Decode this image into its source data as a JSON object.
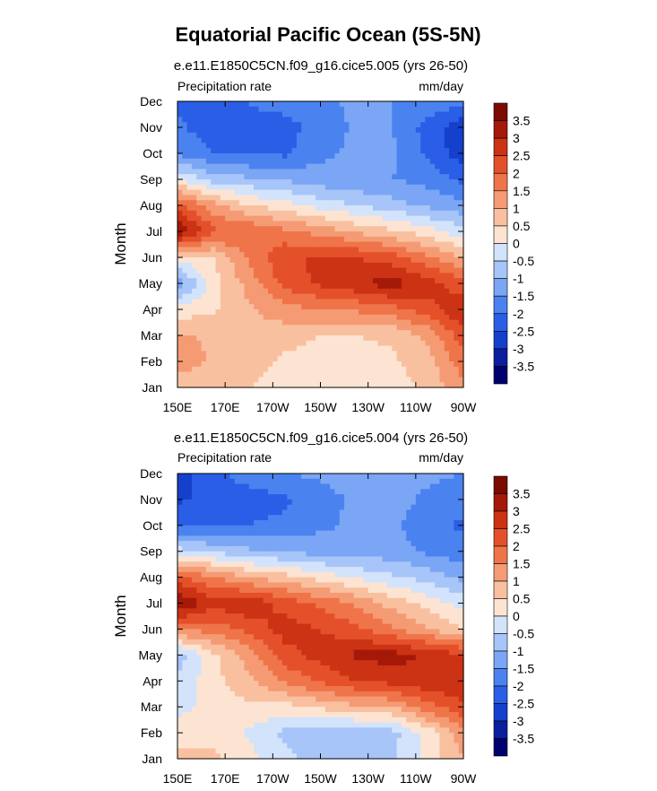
{
  "figure": {
    "title": "Equatorial Pacific Ocean (5S-5N)"
  },
  "colors": {
    "scale": [
      "#00006e",
      "#0a1e9e",
      "#1540cc",
      "#2a5ee6",
      "#4a82f0",
      "#7aa6f5",
      "#a7c5f8",
      "#d3e3fb",
      "#fde4d2",
      "#f9c0a0",
      "#f59b74",
      "#ef7449",
      "#e4502a",
      "#cc3214",
      "#a51908",
      "#7a0a02"
    ]
  },
  "chart_data": [
    {
      "type": "heatmap",
      "title": "e.e11.E1850C5CN.f09_g16.cice5.005 (yrs 26-50)",
      "left_label": "Precipitation rate",
      "right_label": "mm/day",
      "ylabel": "Month",
      "xlabel": "",
      "x_ticks": [
        "150E",
        "170E",
        "170W",
        "150W",
        "130W",
        "110W",
        "90W"
      ],
      "x_tick_lon": [
        150,
        170,
        190,
        210,
        230,
        250,
        270
      ],
      "x_range": [
        150,
        270
      ],
      "y_ticks": [
        "Jan",
        "Feb",
        "Mar",
        "Apr",
        "May",
        "Jun",
        "Jul",
        "Aug",
        "Sep",
        "Oct",
        "Nov",
        "Dec"
      ],
      "colorbar_levels": [
        "3.5",
        "3",
        "2.5",
        "2",
        "1.5",
        "1",
        "0.5",
        "0",
        "-0.5",
        "-1",
        "-1.5",
        "-2",
        "-2.5",
        "-3",
        "-3.5"
      ],
      "contour_interval": 0.5,
      "z_range": [
        -4,
        4
      ],
      "lon": [
        150,
        165,
        180,
        195,
        210,
        225,
        240,
        255,
        270
      ],
      "z": [
        [
          0.6,
          0.5,
          0.5,
          0.2,
          0.1,
          0.1,
          0.3,
          0.6,
          1.4
        ],
        [
          1.4,
          0.9,
          0.7,
          0.4,
          0.3,
          0.3,
          0.4,
          0.8,
          1.8
        ],
        [
          1.1,
          0.9,
          0.9,
          0.7,
          0.5,
          0.5,
          0.6,
          1.1,
          2.3
        ],
        [
          0.2,
          0.4,
          0.9,
          1.3,
          1.5,
          1.6,
          1.8,
          2.3,
          3.0
        ],
        [
          -1.4,
          0.3,
          1.2,
          2.2,
          2.6,
          2.9,
          3.3,
          2.7,
          2.2
        ],
        [
          0.2,
          0.5,
          1.6,
          2.4,
          2.6,
          2.5,
          2.2,
          1.6,
          1.0
        ],
        [
          3.6,
          2.1,
          2.0,
          1.6,
          1.3,
          0.9,
          0.6,
          0.2,
          -0.3
        ],
        [
          2.2,
          1.2,
          0.5,
          0.2,
          -0.2,
          -0.5,
          -0.8,
          -1.1,
          -1.4
        ],
        [
          0.0,
          -0.7,
          -0.9,
          -1.1,
          -1.3,
          -1.4,
          -1.5,
          -1.7,
          -2.1
        ],
        [
          -1.6,
          -2.0,
          -2.1,
          -2.1,
          -1.6,
          -1.4,
          -1.4,
          -2.1,
          -2.8
        ],
        [
          -1.9,
          -2.3,
          -2.1,
          -2.2,
          -1.8,
          -1.4,
          -1.5,
          -2.2,
          -2.9
        ],
        [
          -2.1,
          -2.1,
          -2.0,
          -1.8,
          -1.6,
          -1.4,
          -1.5,
          -1.6,
          -1.8
        ]
      ]
    },
    {
      "type": "heatmap",
      "title": "e.e11.E1850C5CN.f09_g16.cice5.004 (yrs 26-50)",
      "left_label": "Precipitation rate",
      "right_label": "mm/day",
      "ylabel": "Month",
      "xlabel": "",
      "x_ticks": [
        "150E",
        "170E",
        "170W",
        "150W",
        "130W",
        "110W",
        "90W"
      ],
      "x_tick_lon": [
        150,
        170,
        190,
        210,
        230,
        250,
        270
      ],
      "x_range": [
        150,
        270
      ],
      "y_ticks": [
        "Jan",
        "Feb",
        "Mar",
        "Apr",
        "May",
        "Jun",
        "Jul",
        "Aug",
        "Sep",
        "Oct",
        "Nov",
        "Dec"
      ],
      "colorbar_levels": [
        "3.5",
        "3",
        "2.5",
        "2",
        "1.5",
        "1",
        "0.5",
        "0",
        "-0.5",
        "-1",
        "-1.5",
        "-2",
        "-2.5",
        "-3",
        "-3.5"
      ],
      "contour_interval": 0.5,
      "z_range": [
        -4,
        4
      ],
      "lon": [
        150,
        165,
        180,
        195,
        210,
        225,
        240,
        255,
        270
      ],
      "z": [
        [
          0.6,
          0.6,
          0.2,
          -0.4,
          -0.7,
          -0.8,
          -0.6,
          0.2,
          1.0
        ],
        [
          0.3,
          0.3,
          -0.1,
          -0.6,
          -0.8,
          -0.9,
          -0.7,
          0.2,
          1.3
        ],
        [
          -0.2,
          0.2,
          0.4,
          0.3,
          0.6,
          0.9,
          1.0,
          1.8,
          2.4
        ],
        [
          -0.4,
          0.3,
          0.9,
          1.6,
          2.1,
          2.5,
          2.7,
          2.9,
          3.0
        ],
        [
          -0.8,
          0.4,
          1.2,
          2.3,
          2.7,
          3.1,
          3.2,
          2.9,
          2.6
        ],
        [
          1.6,
          1.7,
          2.2,
          2.7,
          2.5,
          2.1,
          1.6,
          1.0,
          0.5
        ],
        [
          3.6,
          2.7,
          2.9,
          2.3,
          1.9,
          1.4,
          0.8,
          0.3,
          -0.2
        ],
        [
          2.1,
          1.5,
          1.0,
          0.7,
          0.3,
          -0.1,
          -0.4,
          -0.7,
          -1.2
        ],
        [
          -0.3,
          -0.6,
          -0.9,
          -1.1,
          -1.2,
          -1.3,
          -1.3,
          -1.6,
          -1.8
        ],
        [
          -2.1,
          -2.1,
          -2.0,
          -1.9,
          -1.6,
          -1.4,
          -1.4,
          -1.8,
          -2.1
        ],
        [
          -2.6,
          -2.3,
          -2.2,
          -2.1,
          -1.7,
          -1.4,
          -1.3,
          -1.6,
          -1.8
        ],
        [
          -2.8,
          -2.1,
          -1.8,
          -1.5,
          -1.4,
          -1.3,
          -1.3,
          -1.4,
          -1.5
        ]
      ]
    }
  ]
}
